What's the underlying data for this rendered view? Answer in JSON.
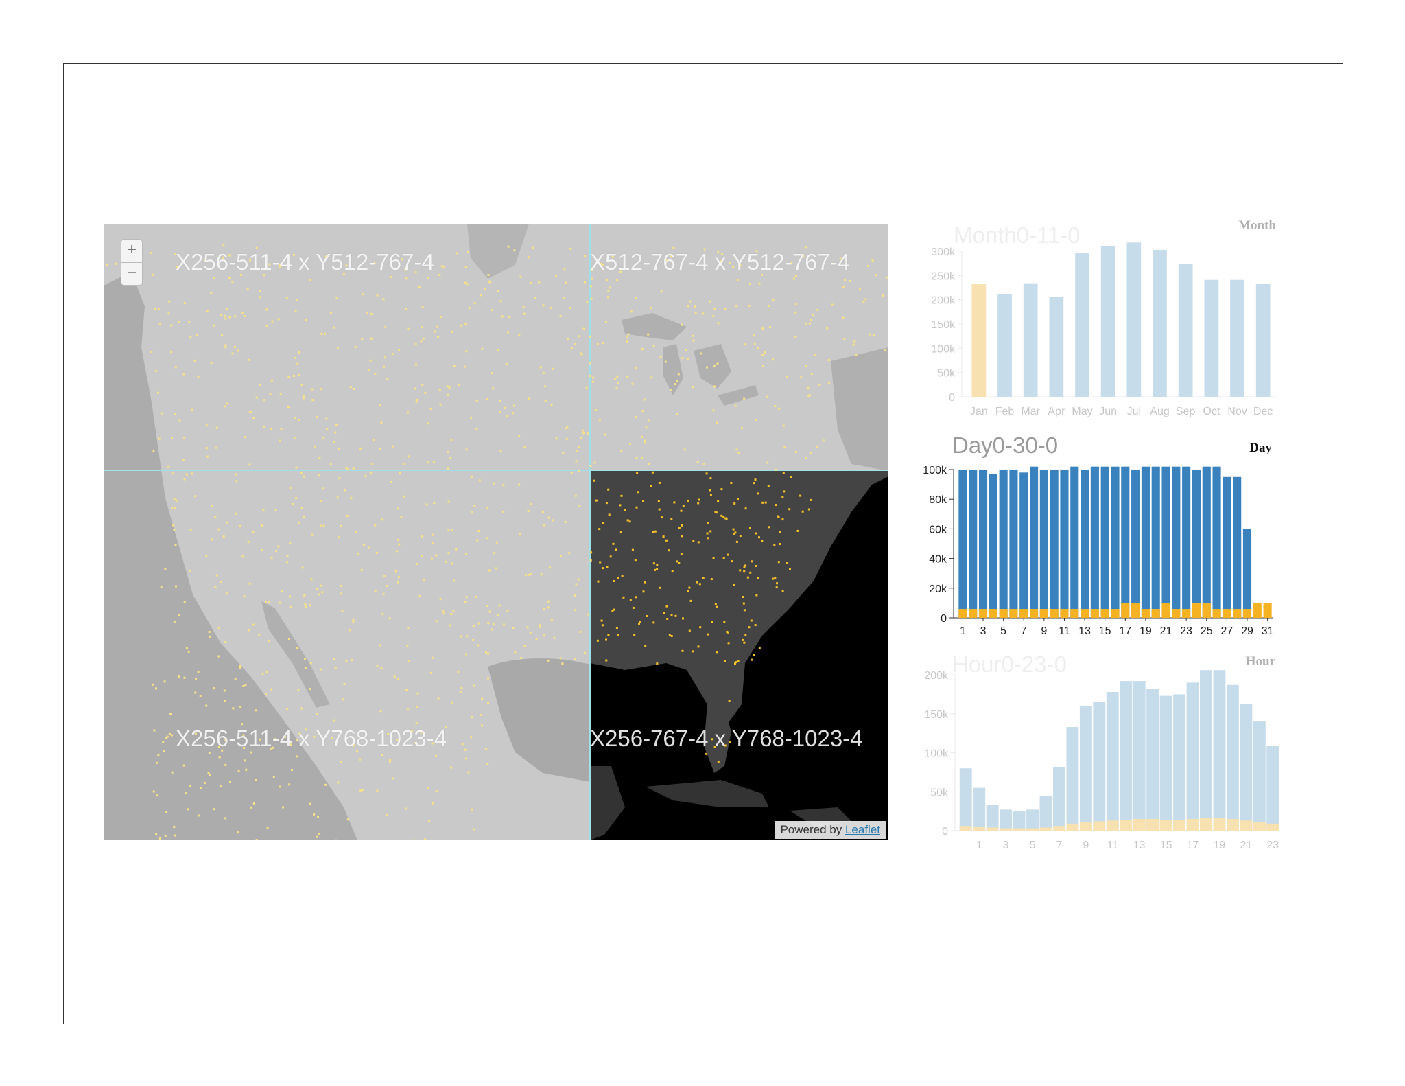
{
  "map": {
    "zoom_in_label": "+",
    "zoom_out_label": "−",
    "tiles": [
      {
        "label": "X256-511-4 x Y512-767-4"
      },
      {
        "label": "X512-767-4 x Y512-767-4"
      },
      {
        "label": "X256-511-4 x Y768-1023-4"
      },
      {
        "label": "X256-767-4 x Y768-1023-4"
      }
    ],
    "attribution": {
      "prefix": "Powered by",
      "link": "Leaflet"
    },
    "colors": {
      "land": "#c8c8c8",
      "water": "#a9a9a9",
      "dot_light": "#f6e08a",
      "dot_bright": "#f5c12a",
      "highlight_bg": "#000000",
      "grid_line": "#9fe0e8"
    }
  },
  "charts": {
    "month": {
      "title": "Month0-11-0",
      "tag": "Month",
      "chart_data": {
        "type": "bar",
        "categories": [
          "Jan",
          "Feb",
          "Mar",
          "Apr",
          "May",
          "Jun",
          "Jul",
          "Aug",
          "Sep",
          "Oct",
          "Nov",
          "Dec"
        ],
        "values": [
          232000,
          212000,
          234000,
          206000,
          296000,
          310000,
          318000,
          303000,
          274000,
          241000,
          241000,
          232000
        ],
        "highlight_index": 0,
        "ylim": [
          0,
          300000
        ],
        "yticks": [
          {
            "v": 0,
            "label": "0"
          },
          {
            "v": 50000,
            "label": "50k"
          },
          {
            "v": 100000,
            "label": "100k"
          },
          {
            "v": 150000,
            "label": "150k"
          },
          {
            "v": 200000,
            "label": "200k"
          },
          {
            "v": 250000,
            "label": "250k"
          },
          {
            "v": 300000,
            "label": "300k"
          }
        ],
        "colors": {
          "bar": "#c6dcea",
          "highlight": "#f7e1b0",
          "text": "#c7c7c7"
        }
      }
    },
    "day": {
      "title": "Day0-30-0",
      "tag": "Day",
      "chart_data": {
        "type": "bar",
        "categories": [
          "1",
          "2",
          "3",
          "4",
          "5",
          "6",
          "7",
          "8",
          "9",
          "10",
          "11",
          "12",
          "13",
          "14",
          "15",
          "16",
          "17",
          "18",
          "19",
          "20",
          "21",
          "22",
          "23",
          "24",
          "25",
          "26",
          "27",
          "28",
          "29",
          "30",
          "31"
        ],
        "tick_labels": [
          "1",
          "3",
          "5",
          "7",
          "9",
          "11",
          "13",
          "15",
          "17",
          "19",
          "21",
          "23",
          "25",
          "27",
          "29",
          "31"
        ],
        "series": [
          {
            "values": [
              100000,
              100000,
              100000,
              97000,
              100000,
              100000,
              98000,
              102000,
              100000,
              100000,
              100000,
              102000,
              100000,
              102000,
              102000,
              102000,
              102000,
              100000,
              102000,
              102000,
              102000,
              102000,
              102000,
              100000,
              102000,
              102000,
              95000,
              95000,
              60000,
              0,
              0
            ]
          },
          {
            "values": [
              6000,
              6000,
              6000,
              6000,
              6000,
              6000,
              6000,
              6000,
              6000,
              6000,
              6000,
              6000,
              6000,
              6000,
              6000,
              6000,
              10000,
              10000,
              6000,
              6000,
              10000,
              6000,
              6000,
              10000,
              10000,
              6000,
              6000,
              6000,
              6000,
              10000,
              10000
            ]
          }
        ],
        "ylim": [
          0,
          100000
        ],
        "yticks": [
          {
            "v": 0,
            "label": "0"
          },
          {
            "v": 20000,
            "label": "20k"
          },
          {
            "v": 40000,
            "label": "40k"
          },
          {
            "v": 60000,
            "label": "60k"
          },
          {
            "v": 80000,
            "label": "80k"
          },
          {
            "v": 100000,
            "label": "100k"
          }
        ],
        "colors": {
          "bar": "#3a82be",
          "highlight": "#f5b324",
          "text": "#222222"
        }
      }
    },
    "hour": {
      "title": "Hour0-23-0",
      "tag": "Hour",
      "chart_data": {
        "type": "bar",
        "categories": [
          "0",
          "1",
          "2",
          "3",
          "4",
          "5",
          "6",
          "7",
          "8",
          "9",
          "10",
          "11",
          "12",
          "13",
          "14",
          "15",
          "16",
          "17",
          "18",
          "19",
          "20",
          "21",
          "22",
          "23"
        ],
        "tick_labels": [
          "1",
          "3",
          "5",
          "7",
          "9",
          "11",
          "13",
          "15",
          "17",
          "19",
          "21",
          "23"
        ],
        "series": [
          {
            "values": [
              80000,
              55000,
              33000,
              27000,
              25000,
              27000,
              45000,
              82000,
              133000,
              160000,
              165000,
              178000,
              192000,
              192000,
              182000,
              173000,
              175000,
              190000,
              206000,
              206000,
              187000,
              163000,
              140000,
              109000
            ]
          },
          {
            "values": [
              6000,
              5000,
              4000,
              3000,
              3000,
              3000,
              4000,
              6000,
              9000,
              11000,
              12000,
              13000,
              14000,
              15000,
              15000,
              14000,
              14000,
              15000,
              16000,
              16000,
              15000,
              13000,
              11000,
              9000
            ]
          }
        ],
        "ylim": [
          0,
          200000
        ],
        "yticks": [
          {
            "v": 0,
            "label": "0"
          },
          {
            "v": 50000,
            "label": "50k"
          },
          {
            "v": 100000,
            "label": "100k"
          },
          {
            "v": 150000,
            "label": "150k"
          },
          {
            "v": 200000,
            "label": "200k"
          }
        ],
        "colors": {
          "bar": "#c6dcea",
          "highlight": "#f7e1b0",
          "text": "#c7c7c7"
        }
      }
    }
  }
}
